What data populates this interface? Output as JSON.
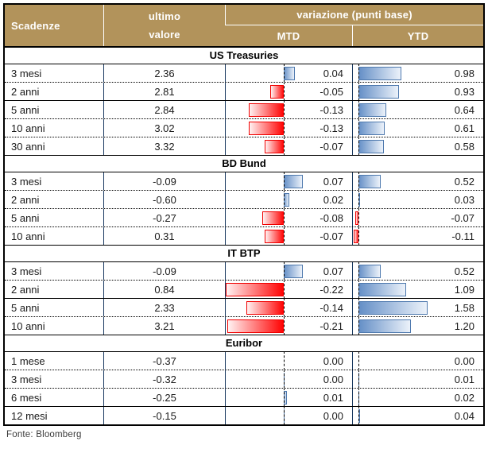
{
  "header": {
    "scadenze": "Scadenze",
    "ultimo_line1": "ultimo",
    "ultimo_line2": "valore",
    "variazione": "variazione (punti base)",
    "mtd": "MTD",
    "ytd": "YTD"
  },
  "footer": {
    "source": "Fonte: Bloomberg"
  },
  "colors": {
    "header_bg": "#B2935B",
    "header_text": "#FFFFFF",
    "grid_line": "#17375E",
    "positive_bar": "#638EC6",
    "positive_bar_border": "#4E79AE",
    "negative_bar": "#FF0000",
    "axis_line": "#000000"
  },
  "chart_data": {
    "type": "table",
    "title": "variazione (punti base)",
    "columns": [
      "Scadenze",
      "ultimo valore",
      "MTD",
      "YTD"
    ],
    "bar_axes": {
      "mtd_axis_pct": 46,
      "mtd_pct_per_unit": 214,
      "ytd_axis_pct": 4.2,
      "ytd_pct_per_unit": 33.5,
      "positive_color": "#638EC6",
      "negative_color": "#FF0000"
    },
    "sections": [
      {
        "title": "US Treasuries",
        "rows": [
          {
            "label": "3 mesi",
            "valore": "2.36",
            "mtd": "0.04",
            "ytd": "0.98",
            "divider_after": "dotted"
          },
          {
            "label": "2 anni",
            "valore": "2.81",
            "mtd": "-0.05",
            "ytd": "0.93",
            "divider_after": "solid"
          },
          {
            "label": "5 anni",
            "valore": "2.84",
            "mtd": "-0.13",
            "ytd": "0.64",
            "divider_after": "dotted"
          },
          {
            "label": "10 anni",
            "valore": "3.02",
            "mtd": "-0.13",
            "ytd": "0.61",
            "divider_after": "dotted"
          },
          {
            "label": "30 anni",
            "valore": "3.32",
            "mtd": "-0.07",
            "ytd": "0.58",
            "divider_after": "none"
          }
        ]
      },
      {
        "title": "BD Bund",
        "rows": [
          {
            "label": "3 mesi",
            "valore": "-0.09",
            "mtd": "0.07",
            "ytd": "0.52",
            "divider_after": "dotted"
          },
          {
            "label": "2 anni",
            "valore": "-0.60",
            "mtd": "0.02",
            "ytd": "0.03",
            "divider_after": "dotted"
          },
          {
            "label": "5 anni",
            "valore": "-0.27",
            "mtd": "-0.08",
            "ytd": "-0.07",
            "divider_after": "dotted"
          },
          {
            "label": "10 anni",
            "valore": "0.31",
            "mtd": "-0.07",
            "ytd": "-0.11",
            "divider_after": "none"
          }
        ]
      },
      {
        "title": "IT BTP",
        "rows": [
          {
            "label": "3 mesi",
            "valore": "-0.09",
            "mtd": "0.07",
            "ytd": "0.52",
            "divider_after": "dotted"
          },
          {
            "label": "2 anni",
            "valore": "0.84",
            "mtd": "-0.22",
            "ytd": "1.09",
            "divider_after": "solid"
          },
          {
            "label": "5 anni",
            "valore": "2.33",
            "mtd": "-0.14",
            "ytd": "1.58",
            "divider_after": "dotted"
          },
          {
            "label": "10 anni",
            "valore": "3.21",
            "mtd": "-0.21",
            "ytd": "1.20",
            "divider_after": "none"
          }
        ]
      },
      {
        "title": "Euribor",
        "rows": [
          {
            "label": "1 mese",
            "valore": "-0.37",
            "mtd": "0.00",
            "ytd": "0.00",
            "divider_after": "dotted"
          },
          {
            "label": "3 mesi",
            "valore": "-0.32",
            "mtd": "0.00",
            "ytd": "0.01",
            "mtd_bar": 0.003,
            "divider_after": "dotted"
          },
          {
            "label": "6 mesi",
            "valore": "-0.25",
            "mtd": "0.01",
            "ytd": "0.02",
            "divider_after": "solid"
          },
          {
            "label": "12 mesi",
            "valore": "-0.15",
            "mtd": "0.00",
            "ytd": "0.04",
            "mtd_bar": 0.004,
            "divider_after": "none"
          }
        ]
      }
    ]
  }
}
